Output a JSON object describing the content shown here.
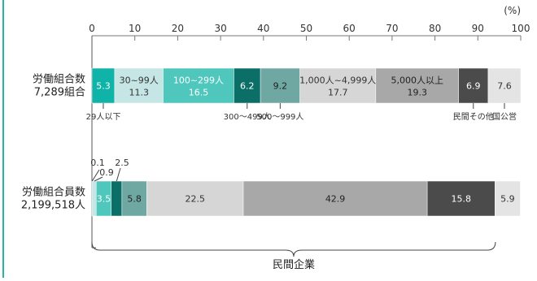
{
  "accent_color": "#2bb3a6",
  "chart_data": {
    "type": "bar",
    "stacked": true,
    "orientation": "horizontal",
    "unit_label": "(%)",
    "xlim": [
      0,
      100
    ],
    "ticks": [
      "0",
      "10",
      "20",
      "30",
      "40",
      "50",
      "60",
      "70",
      "80",
      "90",
      "100"
    ],
    "bars": [
      {
        "label_line1": "労働組合数",
        "label_line2": "7,289組合",
        "segments": [
          {
            "value": 5.3,
            "text": "5.3",
            "text2": "",
            "color": "#0fb3a8",
            "text_color": "#ffffff",
            "callout": "29人以下",
            "callout_side": "below"
          },
          {
            "value": 11.3,
            "text": "30~99人",
            "text2": "11.3",
            "color": "#c5e6e4",
            "text_color": "#333333",
            "callout": "",
            "callout_side": ""
          },
          {
            "value": 16.5,
            "text": "100~299人",
            "text2": "16.5",
            "color": "#4fc7bd",
            "text_color": "#ffffff",
            "callout": "",
            "callout_side": ""
          },
          {
            "value": 6.2,
            "text": "6.2",
            "text2": "",
            "color": "#0c6f67",
            "text_color": "#ffffff",
            "callout": "300〜499人",
            "callout_side": "below"
          },
          {
            "value": 9.2,
            "text": "9.2",
            "text2": "",
            "color": "#6fa7a3",
            "text_color": "#222222",
            "callout": "500〜999人",
            "callout_side": "below"
          },
          {
            "value": 17.7,
            "text": "1,000人~4,999人",
            "text2": "17.7",
            "color": "#d6d6d6",
            "text_color": "#333333",
            "callout": "",
            "callout_side": ""
          },
          {
            "value": 19.3,
            "text": "5,000人以上",
            "text2": "19.3",
            "color": "#a8a8a8",
            "text_color": "#222222",
            "callout": "",
            "callout_side": ""
          },
          {
            "value": 6.9,
            "text": "6.9",
            "text2": "",
            "color": "#4b4b4b",
            "text_color": "#ffffff",
            "callout": "民間その他",
            "callout_side": "below"
          },
          {
            "value": 7.6,
            "text": "7.6",
            "text2": "",
            "color": "#e4e4e4",
            "text_color": "#333333",
            "callout": "国公営",
            "callout_side": "below"
          }
        ]
      },
      {
        "label_line1": "労働組合員数",
        "label_line2": "2,199,518人",
        "segments": [
          {
            "value": 0.1,
            "text": "",
            "text2": "",
            "color": "#0fb3a8",
            "text_color": "#ffffff",
            "callout": "0.1",
            "callout_side": "above"
          },
          {
            "value": 0.9,
            "text": "",
            "text2": "",
            "color": "#c5e6e4",
            "text_color": "#333333",
            "callout": "0.9",
            "callout_side": "above"
          },
          {
            "value": 3.5,
            "text": "3.5",
            "text2": "",
            "color": "#4fc7bd",
            "text_color": "#ffffff",
            "callout": "",
            "callout_side": ""
          },
          {
            "value": 2.5,
            "text": "",
            "text2": "",
            "color": "#0c6f67",
            "text_color": "#ffffff",
            "callout": "2.5",
            "callout_side": "above"
          },
          {
            "value": 5.8,
            "text": "5.8",
            "text2": "",
            "color": "#6fa7a3",
            "text_color": "#222222",
            "callout": "",
            "callout_side": ""
          },
          {
            "value": 22.5,
            "text": "22.5",
            "text2": "",
            "color": "#d6d6d6",
            "text_color": "#333333",
            "callout": "",
            "callout_side": ""
          },
          {
            "value": 42.9,
            "text": "42.9",
            "text2": "",
            "color": "#a8a8a8",
            "text_color": "#222222",
            "callout": "",
            "callout_side": ""
          },
          {
            "value": 15.8,
            "text": "15.8",
            "text2": "",
            "color": "#4b4b4b",
            "text_color": "#ffffff",
            "callout": "",
            "callout_side": ""
          },
          {
            "value": 5.9,
            "text": "5.9",
            "text2": "",
            "color": "#e4e4e4",
            "text_color": "#333333",
            "callout": "",
            "callout_side": ""
          }
        ]
      }
    ],
    "bracket_label": "民間企業",
    "bracket_range": [
      0,
      94.1
    ]
  }
}
